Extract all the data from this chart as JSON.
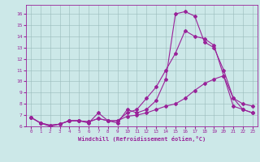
{
  "title": "",
  "xlabel": "Windchill (Refroidissement éolien,°C)",
  "ylabel": "",
  "xlim": [
    -0.5,
    23.5
  ],
  "ylim": [
    6,
    16.8
  ],
  "xticks": [
    0,
    1,
    2,
    3,
    4,
    5,
    6,
    7,
    8,
    9,
    10,
    11,
    12,
    13,
    14,
    15,
    16,
    17,
    18,
    19,
    20,
    21,
    22,
    23
  ],
  "yticks": [
    6,
    7,
    8,
    9,
    10,
    11,
    12,
    13,
    14,
    15,
    16
  ],
  "bg_color": "#cce8e8",
  "line_color": "#992299",
  "grid_color": "#99bbbb",
  "line1_x": [
    0,
    1,
    2,
    3,
    4,
    5,
    6,
    7,
    8,
    9,
    10,
    11,
    12,
    13,
    14,
    15,
    16,
    17,
    18,
    19,
    20,
    21,
    22,
    23
  ],
  "line1_y": [
    6.8,
    6.3,
    6.0,
    6.2,
    6.5,
    6.5,
    6.3,
    7.2,
    6.5,
    6.3,
    7.5,
    7.2,
    7.5,
    8.3,
    10.2,
    16.0,
    16.2,
    15.8,
    13.5,
    13.0,
    11.0,
    8.5,
    7.5,
    7.2
  ],
  "line2_x": [
    0,
    1,
    2,
    3,
    4,
    5,
    6,
    7,
    8,
    9,
    10,
    11,
    12,
    13,
    14,
    15,
    16,
    17,
    18,
    19,
    20,
    21,
    22,
    23
  ],
  "line2_y": [
    6.8,
    6.3,
    6.1,
    6.2,
    6.5,
    6.5,
    6.4,
    6.7,
    6.5,
    6.5,
    7.2,
    7.5,
    8.5,
    9.5,
    11.0,
    12.5,
    14.5,
    14.0,
    13.8,
    13.2,
    10.5,
    8.5,
    8.0,
    7.8
  ],
  "line3_x": [
    0,
    1,
    2,
    3,
    4,
    5,
    6,
    7,
    8,
    9,
    10,
    11,
    12,
    13,
    14,
    15,
    16,
    17,
    18,
    19,
    20,
    21,
    22,
    23
  ],
  "line3_y": [
    6.8,
    6.3,
    6.1,
    6.2,
    6.5,
    6.5,
    6.4,
    6.7,
    6.5,
    6.5,
    6.9,
    7.0,
    7.2,
    7.5,
    7.8,
    8.0,
    8.5,
    9.2,
    9.8,
    10.2,
    10.5,
    7.8,
    7.5,
    7.2
  ],
  "marker": "D",
  "markersize": 2.0,
  "linewidth": 0.8
}
